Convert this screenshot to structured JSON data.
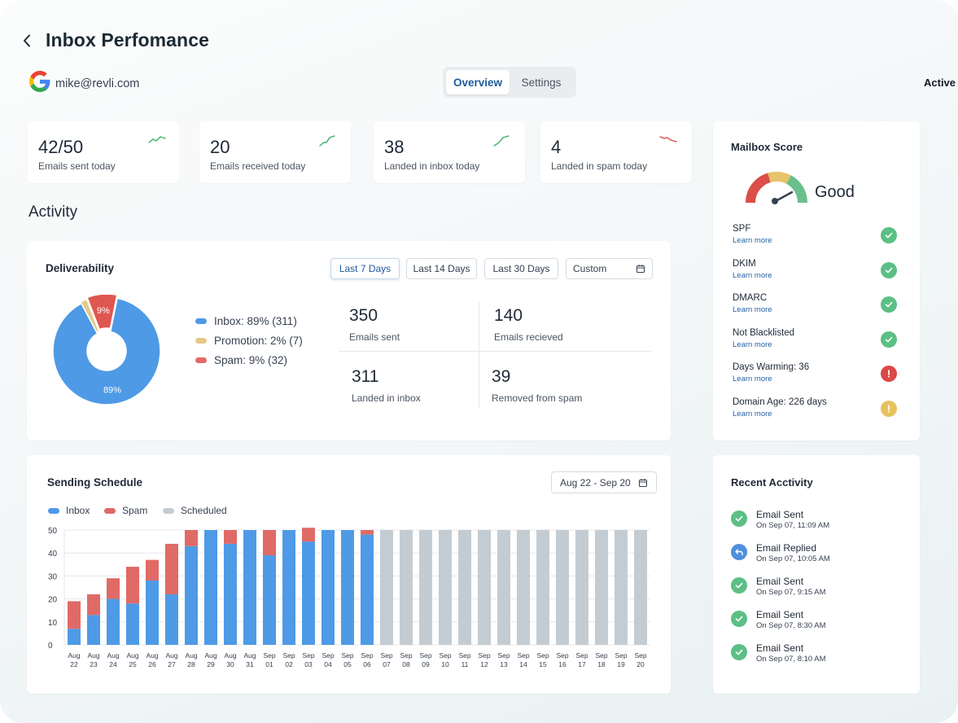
{
  "header": {
    "title": "Inbox Perfomance",
    "account_email": "mike@revli.com",
    "status": "Active"
  },
  "tabs": [
    {
      "label": "Overview",
      "active": true
    },
    {
      "label": "Settings",
      "active": false
    }
  ],
  "stats": [
    {
      "value": "42/50",
      "label": "Emails sent today",
      "trend": "up"
    },
    {
      "value": "20",
      "label": "Emails received today",
      "trend": "up"
    },
    {
      "value": "38",
      "label": "Landed in inbox today",
      "trend": "up"
    },
    {
      "value": "4",
      "label": "Landed in spam today",
      "trend": "down"
    }
  ],
  "activity": {
    "title": "Activity",
    "deliverability": {
      "title": "Deliverability",
      "ranges": [
        "Last 7 Days",
        "Last 14 Days",
        "Last 30 Days",
        "Custom"
      ],
      "selected_range": "Last 7 Days",
      "pie": [
        {
          "name": "Inbox",
          "percent": 89,
          "count": 311,
          "label": "89%",
          "color": "#4e9ae6"
        },
        {
          "name": "Promotion",
          "percent": 2,
          "count": 7,
          "label": "",
          "color": "#e5c98a"
        },
        {
          "name": "Spam",
          "percent": 9,
          "count": 32,
          "label": "9%",
          "color": "#df5750"
        }
      ],
      "legend": [
        "Inbox: 89% (311)",
        "Promotion: 2% (7)",
        "Spam: 9% (32)"
      ],
      "metrics": [
        {
          "value": "350",
          "label": "Emails sent"
        },
        {
          "value": "140",
          "label": "Emails recieved"
        },
        {
          "value": "311",
          "label": "Landed in inbox"
        },
        {
          "value": "39",
          "label": "Removed from spam"
        }
      ]
    }
  },
  "mailbox_score": {
    "title": "Mailbox Score",
    "rating": "Good",
    "items": [
      {
        "name": "SPF",
        "link": "Learn more",
        "status": "ok"
      },
      {
        "name": "DKIM",
        "link": "Learn more",
        "status": "ok"
      },
      {
        "name": "DMARC",
        "link": "Learn more",
        "status": "ok"
      },
      {
        "name": "Not Blacklisted",
        "link": "Learn more",
        "status": "ok"
      },
      {
        "name": "Days Warming: 36",
        "link": "Learn more",
        "status": "error"
      },
      {
        "name": "Domain Age: 226 days",
        "link": "Learn more",
        "status": "warning"
      }
    ],
    "colors": {
      "ok": "#5cbf85",
      "error": "#dc4848",
      "warning": "#e6c25f"
    }
  },
  "sending_schedule": {
    "title": "Sending Schedule",
    "date_range": "Aug 22 - Sep 20",
    "legend": [
      "Inbox",
      "Spam",
      "Scheduled"
    ]
  },
  "recent_activity": {
    "title": "Recent Acctivity",
    "items": [
      {
        "title": "Email Sent",
        "time": "On Sep 07, 11:09 AM",
        "type": "sent"
      },
      {
        "title": "Email Replied",
        "time": "On Sep 07, 10:05 AM",
        "type": "replied"
      },
      {
        "title": "Email Sent",
        "time": "On Sep 07, 9:15 AM",
        "type": "sent"
      },
      {
        "title": "Email Sent",
        "time": "On Sep 07, 8:30 AM",
        "type": "sent"
      },
      {
        "title": "Email Sent",
        "time": "On Sep 07, 8:10 AM",
        "type": "sent"
      }
    ]
  },
  "chart_data": {
    "type": "bar",
    "stacked": true,
    "categories": [
      "Aug 22",
      "Aug 23",
      "Aug 24",
      "Aug 25",
      "Aug 26",
      "Aug 27",
      "Aug 28",
      "Aug 29",
      "Aug 30",
      "Aug 31",
      "Sep 01",
      "Sep 02",
      "Sep 03",
      "Sep 04",
      "Sep 05",
      "Sep 06",
      "Sep 07",
      "Sep 08",
      "Sep 09",
      "Sep 10",
      "Sep 11",
      "Sep 12",
      "Sep 13",
      "Sep 14",
      "Sep 15",
      "Sep 16",
      "Sep 17",
      "Sep 18",
      "Sep 19",
      "Sep 20"
    ],
    "series": [
      {
        "name": "Inbox",
        "color": "#4e9ae6",
        "values": [
          7,
          13,
          20,
          18,
          28,
          22,
          43,
          50,
          44,
          50,
          39,
          50,
          45,
          50,
          50,
          48,
          0,
          0,
          0,
          0,
          0,
          0,
          0,
          0,
          0,
          0,
          0,
          0,
          0,
          0
        ]
      },
      {
        "name": "Spam",
        "color": "#e06a66",
        "values": [
          12,
          9,
          9,
          16,
          9,
          22,
          7,
          0,
          6,
          0,
          11,
          0,
          6,
          0,
          0,
          2,
          0,
          0,
          0,
          0,
          0,
          0,
          0,
          0,
          0,
          0,
          0,
          0,
          0,
          0
        ]
      },
      {
        "name": "Scheduled",
        "color": "#c4ccd3",
        "values": [
          0,
          0,
          0,
          0,
          0,
          0,
          0,
          0,
          0,
          0,
          0,
          0,
          0,
          0,
          0,
          0,
          50,
          50,
          50,
          50,
          50,
          50,
          50,
          50,
          50,
          50,
          50,
          50,
          50,
          50
        ]
      }
    ],
    "yticks": [
      0,
      10,
      20,
      30,
      40,
      50
    ],
    "ylim": [
      0,
      50
    ],
    "grid": true,
    "legend_position": "top-left"
  }
}
